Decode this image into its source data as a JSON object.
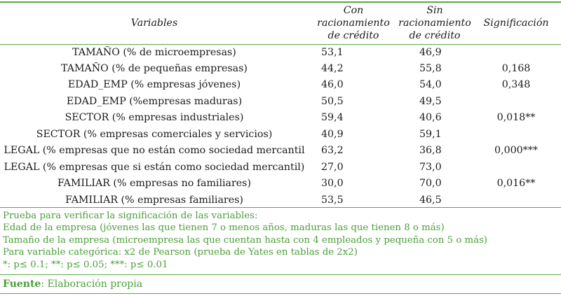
{
  "header": {
    "variables": "Variables",
    "con": [
      "Con",
      "racionamiento",
      "de crédito"
    ],
    "sin": [
      "Sin",
      "racionamiento",
      "de crédito"
    ],
    "significacion": "Significación"
  },
  "rows": [
    {
      "variable": "TAMAÑO (% de microempresas)",
      "con": "53,1",
      "sin": "46,9",
      "sig": ""
    },
    {
      "variable": "TAMAÑO (% de pequeñas empresas)",
      "con": "44,2",
      "sin": "55,8",
      "sig": "0,168"
    },
    {
      "variable": "EDAD_EMP (% empresas jóvenes)",
      "con": "46,0",
      "sin": "54,0",
      "sig": "0,348"
    },
    {
      "variable": "EDAD_EMP (%empresas maduras)",
      "con": "50,5",
      "sin": "49,5",
      "sig": ""
    },
    {
      "variable": "SECTOR (% empresas industriales)",
      "con": "59,4",
      "sin": "40,6",
      "sig": "0,018**"
    },
    {
      "variable": "SECTOR (% empresas comerciales y servicios)",
      "con": "40,9",
      "sin": "59,1",
      "sig": ""
    },
    {
      "variable": "LEGAL (% empresas que no están como sociedad mercantil",
      "con": "63,2",
      "sin": "36,8",
      "sig": "0,000***"
    },
    {
      "variable": "LEGAL (% empresas que si están como sociedad mercantil)",
      "con": "27,0",
      "sin": "73,0",
      "sig": ""
    },
    {
      "variable": "FAMILIAR (% empresas no familiares)",
      "con": "30,0",
      "sin": "70,0",
      "sig": "0,016**"
    },
    {
      "variable": "FAMILIAR (% empresas familiares)",
      "con": "53,5",
      "sin": "46,5",
      "sig": ""
    }
  ],
  "notes": [
    "Prueba para verificar la significación de las variables:",
    "Edad de la empresa (jóvenes las que tienen 7 o menos años, maduras las que tienen 8 o más)",
    "Tamaño de la empresa (microempresa las que cuentan hasta con 4 empleados y pequeña con 5 o más)",
    "Para variable categórica: x2 de Pearson (prueba de Yates en tablas de 2x2)",
    "*: p≤ 0.1; **: p≤ 0.05; ***: p≤ 0.01"
  ],
  "source": {
    "label": "Fuente",
    "text": ": Elaboración propia"
  },
  "colors": {
    "accent": "#5aa845",
    "notes_text": "#4a9e38"
  }
}
